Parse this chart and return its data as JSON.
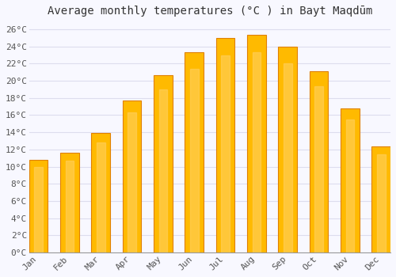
{
  "months": [
    "Jan",
    "Feb",
    "Mar",
    "Apr",
    "May",
    "Jun",
    "Jul",
    "Aug",
    "Sep",
    "Oct",
    "Nov",
    "Dec"
  ],
  "temperatures": [
    10.8,
    11.6,
    13.9,
    17.7,
    20.7,
    23.3,
    25.0,
    25.4,
    24.0,
    21.1,
    16.8,
    12.4
  ],
  "bar_color_main": "#FFBA00",
  "bar_color_edge": "#E08000",
  "bar_color_light": "#FFD060",
  "title": "Average monthly temperatures (°C ) in Bayt Maqdūm",
  "ylim": [
    0,
    27
  ],
  "yticks": [
    0,
    2,
    4,
    6,
    8,
    10,
    12,
    14,
    16,
    18,
    20,
    22,
    24,
    26
  ],
  "ytick_labels": [
    "0°C",
    "2°C",
    "4°C",
    "6°C",
    "8°C",
    "10°C",
    "12°C",
    "14°C",
    "16°C",
    "18°C",
    "20°C",
    "22°C",
    "24°C",
    "26°C"
  ],
  "background_color": "#f8f8ff",
  "plot_bg_color": "#f8f8ff",
  "grid_color": "#ddddee",
  "title_fontsize": 10,
  "tick_fontsize": 8,
  "bar_width": 0.6
}
